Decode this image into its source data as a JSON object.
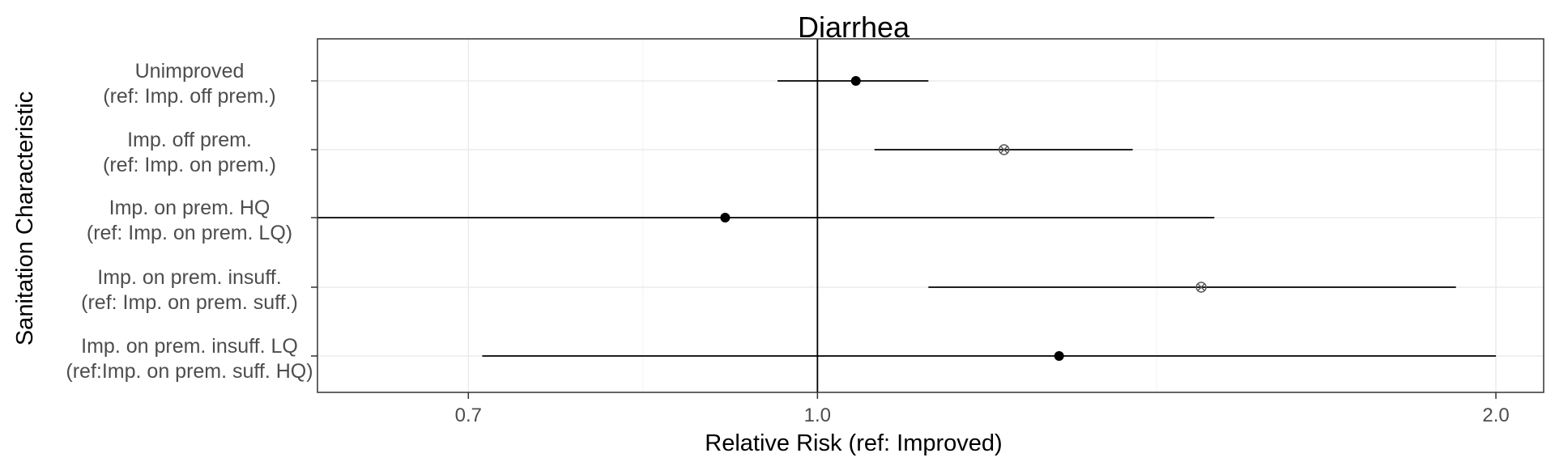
{
  "chart_data": {
    "type": "scatter",
    "subtype": "forest-plot",
    "title": "Diarrhea",
    "xlabel": "Relative Risk (ref: Improved)",
    "ylabel": "Sanitation Characteristic",
    "x_scale": "log",
    "xlim": [
      0.6,
      2.1
    ],
    "x_ticks": [
      0.7,
      1.0,
      2.0
    ],
    "x_tick_labels": [
      "0.7",
      "1.0",
      "2.0"
    ],
    "reference_line": 1.0,
    "grid": true,
    "legend": "none",
    "marker_types": [
      "solid-circle",
      "open-circle-x"
    ],
    "categories": [
      {
        "line1": "Unimproved",
        "line2": "(ref: Imp. off prem.)"
      },
      {
        "line1": "Imp. off prem.",
        "line2": "(ref: Imp. on prem.)"
      },
      {
        "line1": "Imp. on prem. HQ",
        "line2": "(ref: Imp. on prem. LQ)"
      },
      {
        "line1": "Imp. on prem. insuff.",
        "line2": "(ref: Imp. on prem. suff.)"
      },
      {
        "line1": "Imp. on prem. insuff. LQ",
        "line2": "(ref:Imp. on prem. suff. HQ)"
      }
    ],
    "estimates": [
      {
        "rr": 1.04,
        "lower": 0.96,
        "upper": 1.12,
        "marker": "solid-circle"
      },
      {
        "rr": 1.21,
        "lower": 1.06,
        "upper": 1.38,
        "marker": "open-circle-x"
      },
      {
        "rr": 0.91,
        "lower": 0.6,
        "upper": 1.5,
        "marker": "solid-circle"
      },
      {
        "rr": 1.48,
        "lower": 1.12,
        "upper": 1.92,
        "marker": "open-circle-x"
      },
      {
        "rr": 1.28,
        "lower": 0.71,
        "upper": 2.0,
        "marker": "solid-circle"
      }
    ]
  }
}
